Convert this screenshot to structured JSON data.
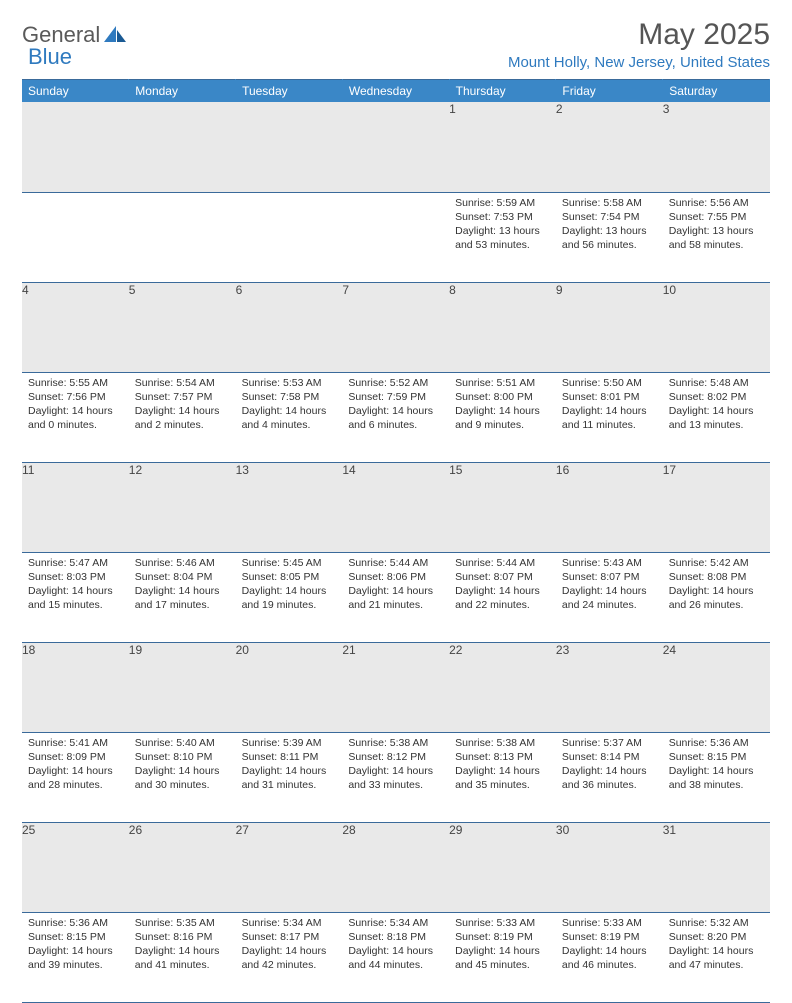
{
  "brand": {
    "part1": "General",
    "part2": "Blue"
  },
  "title": "May 2025",
  "location": "Mount Holly, New Jersey, United States",
  "colors": {
    "header_bg": "#3a87c7",
    "accent": "#2f7abf",
    "daynum_bg": "#e9e9e9",
    "border": "#3a6a9a"
  },
  "day_headers": [
    "Sunday",
    "Monday",
    "Tuesday",
    "Wednesday",
    "Thursday",
    "Friday",
    "Saturday"
  ],
  "weeks": [
    {
      "nums": [
        "",
        "",
        "",
        "",
        "1",
        "2",
        "3"
      ],
      "cells": [
        {
          "sunrise": "",
          "sunset": "",
          "daylight": ""
        },
        {
          "sunrise": "",
          "sunset": "",
          "daylight": ""
        },
        {
          "sunrise": "",
          "sunset": "",
          "daylight": ""
        },
        {
          "sunrise": "",
          "sunset": "",
          "daylight": ""
        },
        {
          "sunrise": "Sunrise: 5:59 AM",
          "sunset": "Sunset: 7:53 PM",
          "daylight": "Daylight: 13 hours and 53 minutes."
        },
        {
          "sunrise": "Sunrise: 5:58 AM",
          "sunset": "Sunset: 7:54 PM",
          "daylight": "Daylight: 13 hours and 56 minutes."
        },
        {
          "sunrise": "Sunrise: 5:56 AM",
          "sunset": "Sunset: 7:55 PM",
          "daylight": "Daylight: 13 hours and 58 minutes."
        }
      ]
    },
    {
      "nums": [
        "4",
        "5",
        "6",
        "7",
        "8",
        "9",
        "10"
      ],
      "cells": [
        {
          "sunrise": "Sunrise: 5:55 AM",
          "sunset": "Sunset: 7:56 PM",
          "daylight": "Daylight: 14 hours and 0 minutes."
        },
        {
          "sunrise": "Sunrise: 5:54 AM",
          "sunset": "Sunset: 7:57 PM",
          "daylight": "Daylight: 14 hours and 2 minutes."
        },
        {
          "sunrise": "Sunrise: 5:53 AM",
          "sunset": "Sunset: 7:58 PM",
          "daylight": "Daylight: 14 hours and 4 minutes."
        },
        {
          "sunrise": "Sunrise: 5:52 AM",
          "sunset": "Sunset: 7:59 PM",
          "daylight": "Daylight: 14 hours and 6 minutes."
        },
        {
          "sunrise": "Sunrise: 5:51 AM",
          "sunset": "Sunset: 8:00 PM",
          "daylight": "Daylight: 14 hours and 9 minutes."
        },
        {
          "sunrise": "Sunrise: 5:50 AM",
          "sunset": "Sunset: 8:01 PM",
          "daylight": "Daylight: 14 hours and 11 minutes."
        },
        {
          "sunrise": "Sunrise: 5:48 AM",
          "sunset": "Sunset: 8:02 PM",
          "daylight": "Daylight: 14 hours and 13 minutes."
        }
      ]
    },
    {
      "nums": [
        "11",
        "12",
        "13",
        "14",
        "15",
        "16",
        "17"
      ],
      "cells": [
        {
          "sunrise": "Sunrise: 5:47 AM",
          "sunset": "Sunset: 8:03 PM",
          "daylight": "Daylight: 14 hours and 15 minutes."
        },
        {
          "sunrise": "Sunrise: 5:46 AM",
          "sunset": "Sunset: 8:04 PM",
          "daylight": "Daylight: 14 hours and 17 minutes."
        },
        {
          "sunrise": "Sunrise: 5:45 AM",
          "sunset": "Sunset: 8:05 PM",
          "daylight": "Daylight: 14 hours and 19 minutes."
        },
        {
          "sunrise": "Sunrise: 5:44 AM",
          "sunset": "Sunset: 8:06 PM",
          "daylight": "Daylight: 14 hours and 21 minutes."
        },
        {
          "sunrise": "Sunrise: 5:44 AM",
          "sunset": "Sunset: 8:07 PM",
          "daylight": "Daylight: 14 hours and 22 minutes."
        },
        {
          "sunrise": "Sunrise: 5:43 AM",
          "sunset": "Sunset: 8:07 PM",
          "daylight": "Daylight: 14 hours and 24 minutes."
        },
        {
          "sunrise": "Sunrise: 5:42 AM",
          "sunset": "Sunset: 8:08 PM",
          "daylight": "Daylight: 14 hours and 26 minutes."
        }
      ]
    },
    {
      "nums": [
        "18",
        "19",
        "20",
        "21",
        "22",
        "23",
        "24"
      ],
      "cells": [
        {
          "sunrise": "Sunrise: 5:41 AM",
          "sunset": "Sunset: 8:09 PM",
          "daylight": "Daylight: 14 hours and 28 minutes."
        },
        {
          "sunrise": "Sunrise: 5:40 AM",
          "sunset": "Sunset: 8:10 PM",
          "daylight": "Daylight: 14 hours and 30 minutes."
        },
        {
          "sunrise": "Sunrise: 5:39 AM",
          "sunset": "Sunset: 8:11 PM",
          "daylight": "Daylight: 14 hours and 31 minutes."
        },
        {
          "sunrise": "Sunrise: 5:38 AM",
          "sunset": "Sunset: 8:12 PM",
          "daylight": "Daylight: 14 hours and 33 minutes."
        },
        {
          "sunrise": "Sunrise: 5:38 AM",
          "sunset": "Sunset: 8:13 PM",
          "daylight": "Daylight: 14 hours and 35 minutes."
        },
        {
          "sunrise": "Sunrise: 5:37 AM",
          "sunset": "Sunset: 8:14 PM",
          "daylight": "Daylight: 14 hours and 36 minutes."
        },
        {
          "sunrise": "Sunrise: 5:36 AM",
          "sunset": "Sunset: 8:15 PM",
          "daylight": "Daylight: 14 hours and 38 minutes."
        }
      ]
    },
    {
      "nums": [
        "25",
        "26",
        "27",
        "28",
        "29",
        "30",
        "31"
      ],
      "cells": [
        {
          "sunrise": "Sunrise: 5:36 AM",
          "sunset": "Sunset: 8:15 PM",
          "daylight": "Daylight: 14 hours and 39 minutes."
        },
        {
          "sunrise": "Sunrise: 5:35 AM",
          "sunset": "Sunset: 8:16 PM",
          "daylight": "Daylight: 14 hours and 41 minutes."
        },
        {
          "sunrise": "Sunrise: 5:34 AM",
          "sunset": "Sunset: 8:17 PM",
          "daylight": "Daylight: 14 hours and 42 minutes."
        },
        {
          "sunrise": "Sunrise: 5:34 AM",
          "sunset": "Sunset: 8:18 PM",
          "daylight": "Daylight: 14 hours and 44 minutes."
        },
        {
          "sunrise": "Sunrise: 5:33 AM",
          "sunset": "Sunset: 8:19 PM",
          "daylight": "Daylight: 14 hours and 45 minutes."
        },
        {
          "sunrise": "Sunrise: 5:33 AM",
          "sunset": "Sunset: 8:19 PM",
          "daylight": "Daylight: 14 hours and 46 minutes."
        },
        {
          "sunrise": "Sunrise: 5:32 AM",
          "sunset": "Sunset: 8:20 PM",
          "daylight": "Daylight: 14 hours and 47 minutes."
        }
      ]
    }
  ]
}
